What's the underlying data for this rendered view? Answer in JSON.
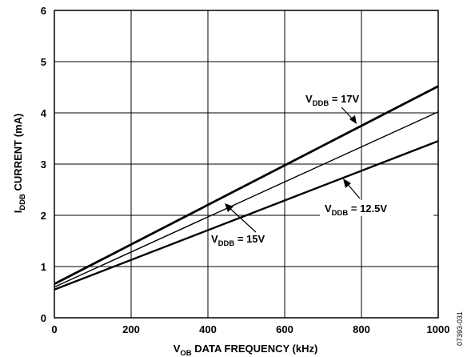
{
  "chart_data": {
    "type": "line",
    "xlabel": {
      "pre": "V",
      "sub": "OB",
      "post": " DATA FREQUENCY (kHz)"
    },
    "ylabel": {
      "pre": "I",
      "sub": "DDB",
      "post": " CURRENT (mA)"
    },
    "xlim": [
      0,
      1000
    ],
    "ylim": [
      0,
      6
    ],
    "x_ticks": [
      "0",
      "200",
      "400",
      "600",
      "800",
      "1000"
    ],
    "y_ticks": [
      "0",
      "1",
      "2",
      "3",
      "4",
      "5",
      "6"
    ],
    "grid": true,
    "series": [
      {
        "label": {
          "pre": "V",
          "sub": "DDB",
          "post": " = 17V"
        },
        "x": [
          0,
          1000
        ],
        "y": [
          0.66,
          4.52
        ]
      },
      {
        "label": {
          "pre": "V",
          "sub": "DDB",
          "post": " = 15V"
        },
        "x": [
          0,
          1000
        ],
        "y": [
          0.6,
          4.02
        ]
      },
      {
        "label": {
          "pre": "V",
          "sub": "DDB",
          "post": " = 12.5V"
        },
        "x": [
          0,
          1000
        ],
        "y": [
          0.55,
          3.45
        ]
      }
    ],
    "figure_code": "07393-031"
  }
}
